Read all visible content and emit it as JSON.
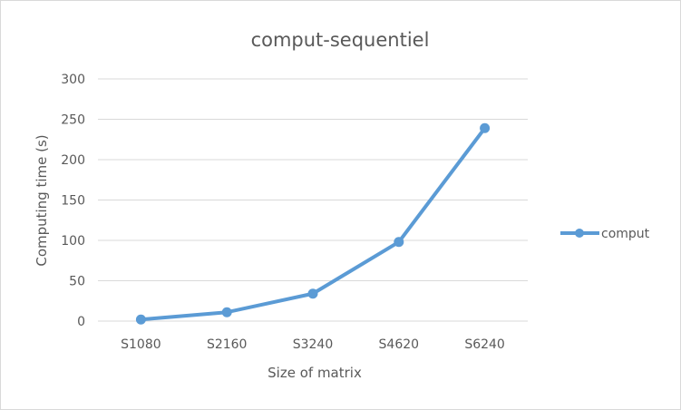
{
  "chart_data": {
    "type": "line",
    "title": "comput-sequentiel",
    "xlabel": "Size of matrix",
    "ylabel": "Computing time (s)",
    "categories": [
      "S1080",
      "S2160",
      "S3240",
      "S4620",
      "S6240"
    ],
    "series": [
      {
        "name": "comput",
        "values": [
          2,
          11,
          34,
          98,
          239
        ],
        "color": "#5b9bd5"
      }
    ],
    "ylim": [
      0,
      300
    ],
    "yticks": [
      "0",
      "50",
      "100",
      "150",
      "200",
      "250",
      "300"
    ],
    "grid": true,
    "legend_position": "right"
  }
}
